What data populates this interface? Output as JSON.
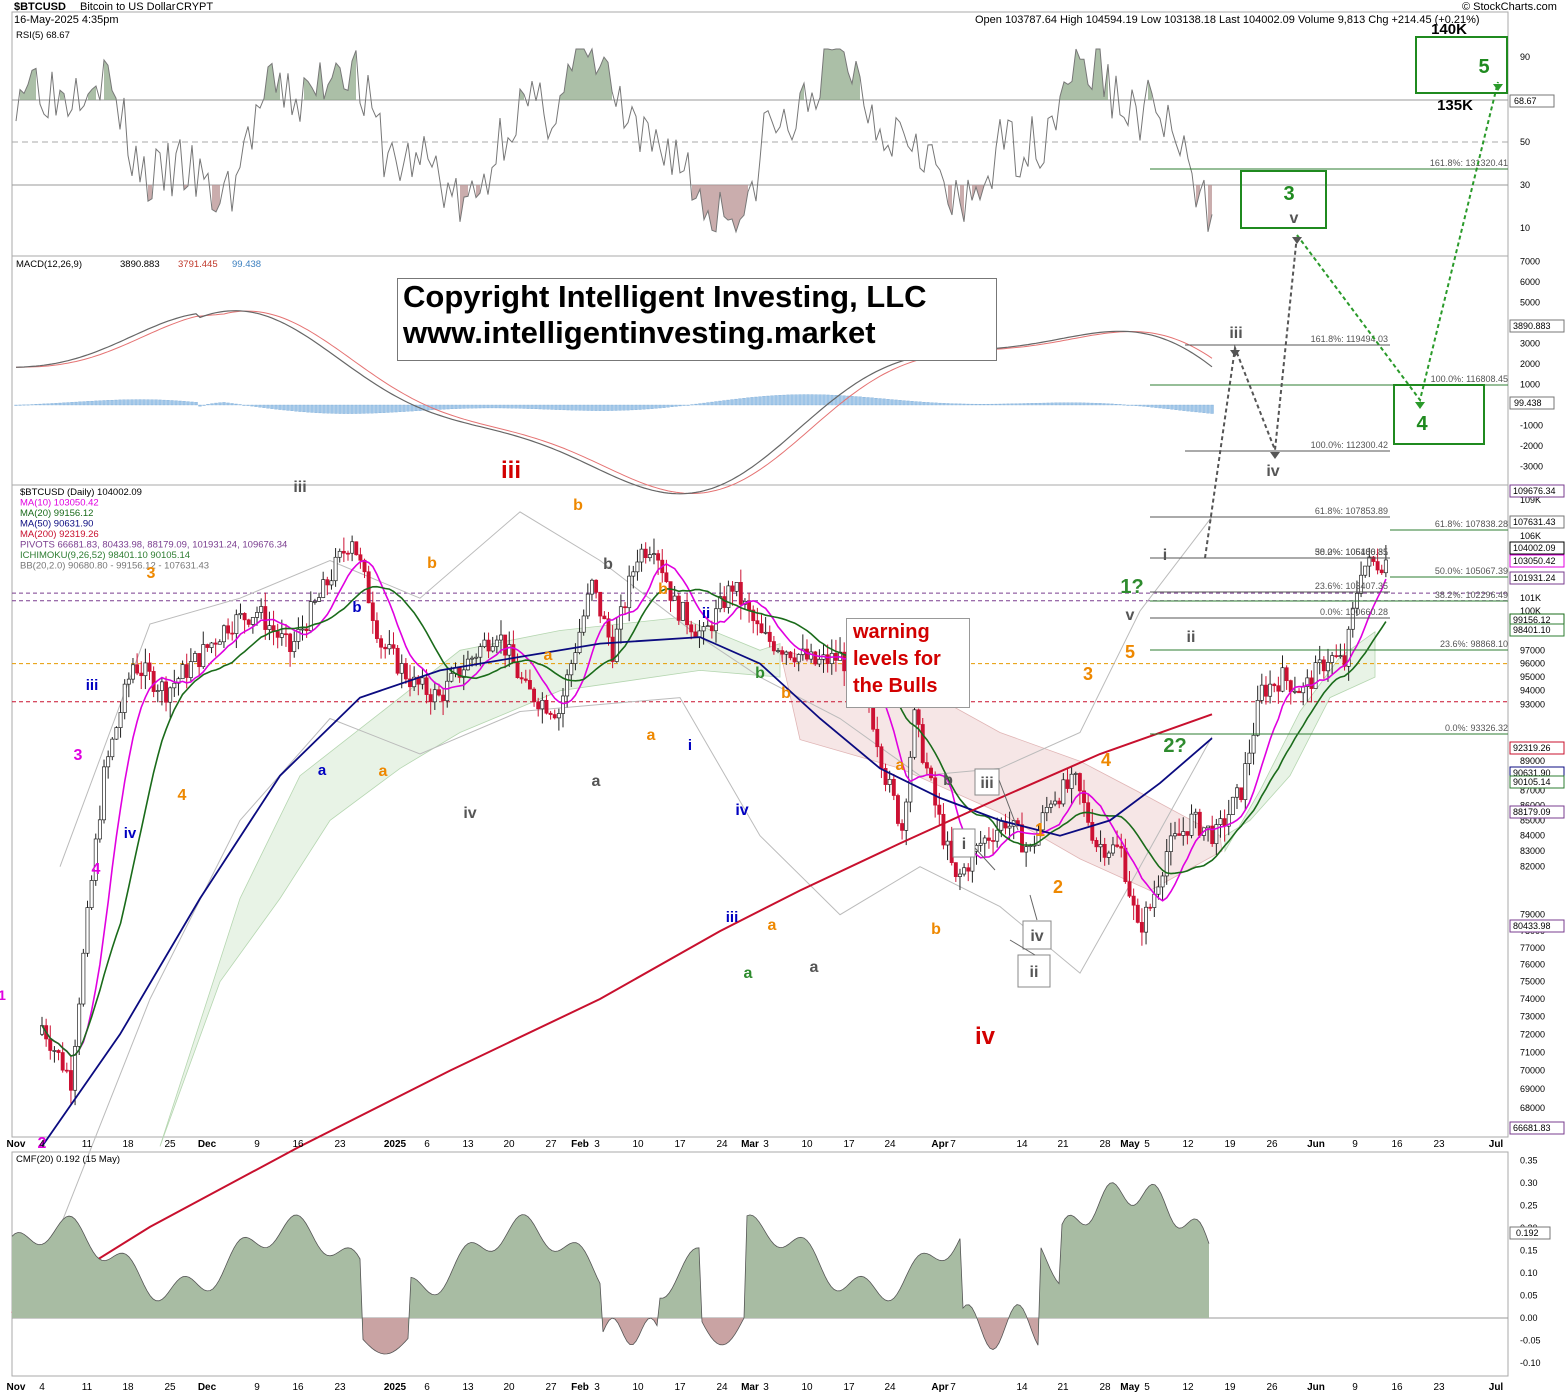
{
  "header": {
    "symbol": "$BTCUSD",
    "name": "Bitcoin to US Dollar",
    "exchange": "CRYPT",
    "date": "16-May-2025 4:35pm",
    "ohlc": "Open 103787.64  High 104594.19  Low 103138.18  Last 104002.09  Volume 9,813  Chg +214.45 (+0.21%)",
    "credit": "© StockCharts.com"
  },
  "copyright": {
    "line1": "Copyright Intelligent Investing, LLC",
    "line2": "www.intelligentinvesting.market"
  },
  "warning": [
    "warning",
    "levels for",
    "the Bulls"
  ],
  "price_legend": [
    {
      "text": "$BTCUSD (Daily) 104002.09",
      "color": "#000000"
    },
    {
      "text": "MA(10) 103050.42",
      "color": "#e000e0"
    },
    {
      "text": "MA(20) 99156.12",
      "color": "#1a6b1a"
    },
    {
      "text": "MA(50) 90631.90",
      "color": "#0b0b80"
    },
    {
      "text": "MA(200) 92319.26",
      "color": "#c8102e"
    },
    {
      "text": "PIVOTS 66681.83, 80433.98, 88179.09, 101931.24, 109676.34",
      "color": "#7a3d8f"
    },
    {
      "text": "ICHIMOKU(9,26,52) 98401.10 90105.14",
      "color": "#2e7d32"
    },
    {
      "text": "BB(20,2.0) 90680.80 - 99156.12 - 107631.43",
      "color": "#777777"
    }
  ],
  "rsi": {
    "label": "RSI(5) 68.67",
    "last": "68.67",
    "ticks": [
      "90",
      "70",
      "50",
      "30",
      "10"
    ]
  },
  "macd": {
    "label": "MACD(12,26,9)",
    "v1": "3890.883",
    "v2": "3791.445",
    "v3": "99.438",
    "last_line": "3890.883",
    "last_hist": "99.438",
    "ticks": [
      "7000",
      "6000",
      "5000",
      "4000",
      "3000",
      "2000",
      "1000",
      "0",
      "-1000",
      "-2000",
      "-3000"
    ]
  },
  "cmf": {
    "label": "CMF(20) 0.192 (15 May)",
    "last": "0.192",
    "ticks": [
      "0.35",
      "0.30",
      "0.25",
      "0.20",
      "0.15",
      "0.10",
      "0.05",
      "0.00",
      "-0.05",
      "-0.10"
    ]
  },
  "price_axis": {
    "ticks": [
      "109K",
      "107K",
      "106K",
      "105K",
      "101K",
      "100K",
      "97000",
      "96000",
      "95000",
      "94000",
      "93000",
      "89000",
      "87000",
      "86000",
      "85000",
      "84000",
      "83000",
      "82000",
      "79000",
      "78000",
      "77000",
      "76000",
      "75000",
      "74000",
      "73000",
      "72000",
      "71000",
      "70000",
      "69000",
      "68000",
      "67000"
    ],
    "flags": [
      {
        "text": "109676.34",
        "color": "#7a3d8f"
      },
      {
        "text": "107631.43",
        "color": "#777777"
      },
      {
        "text": "104002.09",
        "color": "#000000"
      },
      {
        "text": "103050.42",
        "color": "#e000e0"
      },
      {
        "text": "101931.24",
        "color": "#7a3d8f"
      },
      {
        "text": "99156.12",
        "color": "#1a6b1a"
      },
      {
        "text": "98401.10",
        "color": "#2e7d32"
      },
      {
        "text": "92319.26",
        "color": "#c8102e"
      },
      {
        "text": "90631.90",
        "color": "#0b0b80"
      },
      {
        "text": "90105.14",
        "color": "#2e7d32"
      },
      {
        "text": "88179.09",
        "color": "#7a3d8f"
      },
      {
        "text": "80433.98",
        "color": "#7a3d8f"
      },
      {
        "text": "66681.83",
        "color": "#7a3d8f"
      }
    ]
  },
  "x_labels": [
    "Nov",
    "4",
    "11",
    "18",
    "25",
    "Dec",
    "9",
    "16",
    "23",
    "2025",
    "6",
    "13",
    "20",
    "27",
    "Feb",
    "3",
    "10",
    "17",
    "24",
    "Mar",
    "3",
    "10",
    "17",
    "24",
    "Apr",
    "7",
    "14",
    "21",
    "28",
    "May",
    "5",
    "12",
    "19",
    "26",
    "Jun",
    "9",
    "16",
    "23",
    "Jul"
  ],
  "fib_levels": [
    {
      "text": "161.8%: 131320.41",
      "color": "#2e7d32"
    },
    {
      "text": "161.8%: 119494.03",
      "color": "#555555"
    },
    {
      "text": "100.0%: 116808.45",
      "color": "#2e7d32"
    },
    {
      "text": "100.0%: 112300.42",
      "color": "#555555"
    },
    {
      "text": "61.8%: 107853.89",
      "color": "#555555"
    },
    {
      "text": "61.8%: 107838.28",
      "color": "#2e7d32"
    },
    {
      "text": "50.0%: 106480.35",
      "color": "#555555"
    },
    {
      "text": "38.2%: 105106.81",
      "color": "#555555"
    },
    {
      "text": "50.0%: 105067.39",
      "color": "#2e7d32"
    },
    {
      "text": "23.6%: 103407.35",
      "color": "#555555"
    },
    {
      "text": "38.2%: 102296.49",
      "color": "#2e7d32"
    },
    {
      "text": "0.0%: 100660.28",
      "color": "#555555"
    },
    {
      "text": "23.6%: 98868.10",
      "color": "#2e7d32"
    },
    {
      "text": "0.0%: 93326.32",
      "color": "#2e7d32"
    }
  ],
  "targets": {
    "top": "140K",
    "bottom": "135K"
  },
  "wave_labels": [
    {
      "text": "1",
      "color": "#e000e0"
    },
    {
      "text": "2",
      "color": "#e000e0"
    },
    {
      "text": "3",
      "color": "#e000e0"
    },
    {
      "text": "4",
      "color": "#e000e0"
    },
    {
      "text": "iii",
      "color": "#0000c0"
    },
    {
      "text": "iv",
      "color": "#0000c0"
    },
    {
      "text": "b",
      "color": "#0000c0"
    },
    {
      "text": "a",
      "color": "#0000c0"
    },
    {
      "text": "ii",
      "color": "#0000c0"
    },
    {
      "text": "i",
      "color": "#0000c0"
    },
    {
      "text": "iv",
      "color": "#0000c0"
    },
    {
      "text": "iii",
      "color": "#0000c0"
    },
    {
      "text": "3",
      "color": "#ee8800"
    },
    {
      "text": "4",
      "color": "#ee8800"
    },
    {
      "text": "b",
      "color": "#ee8800"
    },
    {
      "text": "a",
      "color": "#ee8800"
    },
    {
      "text": "b",
      "color": "#ee8800"
    },
    {
      "text": "a",
      "color": "#ee8800"
    },
    {
      "text": "b",
      "color": "#ee8800"
    },
    {
      "text": "a",
      "color": "#ee8800"
    },
    {
      "text": "b",
      "color": "#ee8800"
    },
    {
      "text": "a",
      "color": "#ee8800"
    },
    {
      "text": "a",
      "color": "#ee8800"
    },
    {
      "text": "b",
      "color": "#ee8800"
    },
    {
      "text": "1",
      "color": "#ee8800"
    },
    {
      "text": "2",
      "color": "#ee8800"
    },
    {
      "text": "3",
      "color": "#ee8800"
    },
    {
      "text": "4",
      "color": "#ee8800"
    },
    {
      "text": "5",
      "color": "#ee8800"
    },
    {
      "text": "iii",
      "color": "#555555"
    },
    {
      "text": "iv",
      "color": "#555555"
    },
    {
      "text": "b",
      "color": "#555555"
    },
    {
      "text": "a",
      "color": "#555555"
    },
    {
      "text": "a",
      "color": "#555555"
    },
    {
      "text": "b",
      "color": "#555555"
    },
    {
      "text": "i",
      "color": "#555555"
    },
    {
      "text": "v",
      "color": "#555555"
    },
    {
      "text": "ii",
      "color": "#555555"
    },
    {
      "text": "iii",
      "color": "#d20000"
    },
    {
      "text": "iv",
      "color": "#d20000"
    },
    {
      "text": "b",
      "color": "#2e8b2e"
    },
    {
      "text": "a",
      "color": "#2e8b2e"
    },
    {
      "text": "1?",
      "color": "#2e8b2e"
    },
    {
      "text": "2?",
      "color": "#2e8b2e"
    }
  ],
  "boxed_labels": [
    "iii",
    "i",
    "iv",
    "ii"
  ],
  "projection": {
    "gray": [
      "iii",
      "iv",
      "v"
    ],
    "green": [
      "3",
      "4",
      "5"
    ]
  },
  "chart_data": {
    "type": "candlestick",
    "title": "$BTCUSD (Daily)",
    "period": "Nov 2024 - May 2025, projection to Jul 2025",
    "yaxis": {
      "type": "log",
      "ylim": [
        66000,
        111000
      ]
    },
    "grid": false,
    "weekly_close_approx": [
      {
        "week": "Nov 4",
        "close": 80000
      },
      {
        "week": "Nov 11",
        "close": 90000
      },
      {
        "week": "Nov 18",
        "close": 97500
      },
      {
        "week": "Nov 25",
        "close": 96500
      },
      {
        "week": "Dec 2",
        "close": 99000
      },
      {
        "week": "Dec 9",
        "close": 101000
      },
      {
        "week": "Dec 16",
        "close": 97000
      },
      {
        "week": "Dec 23",
        "close": 94000
      },
      {
        "week": "Dec 30",
        "close": 98000
      },
      {
        "week": "Jan 6",
        "close": 94500
      },
      {
        "week": "Jan 13",
        "close": 101000
      },
      {
        "week": "Jan 20",
        "close": 104500
      },
      {
        "week": "Jan 27",
        "close": 101000
      },
      {
        "week": "Feb 3",
        "close": 96500
      },
      {
        "week": "Feb 10",
        "close": 97500
      },
      {
        "week": "Feb 17",
        "close": 96000
      },
      {
        "week": "Feb 24",
        "close": 84500
      },
      {
        "week": "Mar 3",
        "close": 86000
      },
      {
        "week": "Mar 10",
        "close": 83000
      },
      {
        "week": "Mar 17",
        "close": 86500
      },
      {
        "week": "Mar 24",
        "close": 83000
      },
      {
        "week": "Mar 31",
        "close": 83500
      },
      {
        "week": "Apr 7",
        "close": 83500
      },
      {
        "week": "Apr 14",
        "close": 85000
      },
      {
        "week": "Apr 21",
        "close": 94500
      },
      {
        "week": "Apr 28",
        "close": 94500
      },
      {
        "week": "May 5",
        "close": 104000
      },
      {
        "week": "May 12",
        "close": 104000
      }
    ],
    "indicators": [
      "RSI(5)",
      "MACD(12,26,9)",
      "CMF(20)"
    ]
  },
  "colors": {
    "up": "#ffffff",
    "down": "#cc1133",
    "ma10": "#e000e0",
    "ma20": "#1a6b1a",
    "ma50": "#0b0b80",
    "ma200": "#c8102e",
    "bb": "#bbbbbb",
    "green": "#1f8a1f"
  }
}
